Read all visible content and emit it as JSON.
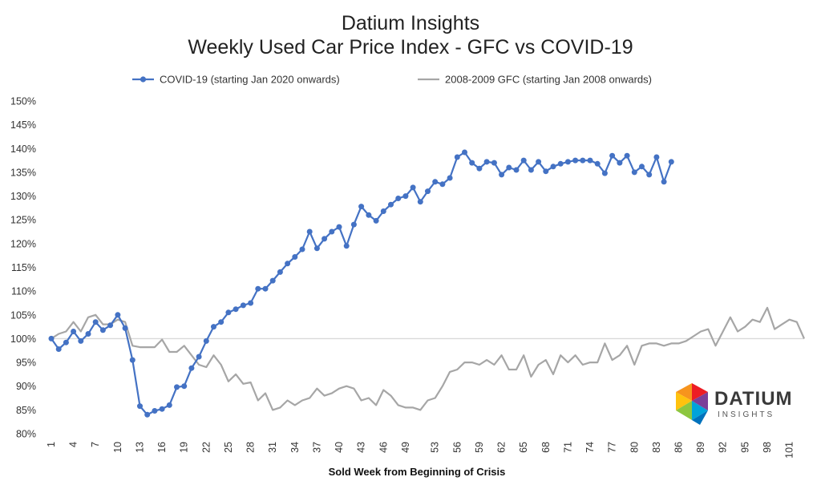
{
  "chart_data": {
    "type": "line",
    "title": "Datium Insights",
    "subtitle": "Weekly Used Car Price Index - GFC vs COVID-19",
    "xlabel": "Sold Week from Beginning of Crisis",
    "ylabel": "",
    "ylim": [
      80,
      150
    ],
    "xlim": [
      1,
      103
    ],
    "y_ticks": [
      "80%",
      "85%",
      "90%",
      "95%",
      "100%",
      "105%",
      "110%",
      "115%",
      "120%",
      "125%",
      "130%",
      "135%",
      "140%",
      "145%",
      "150%"
    ],
    "x_ticks": [
      "1",
      "4",
      "7",
      "10",
      "13",
      "16",
      "19",
      "22",
      "25",
      "28",
      "31",
      "34",
      "37",
      "40",
      "43",
      "46",
      "49",
      "53",
      "56",
      "59",
      "62",
      "65",
      "68",
      "71",
      "74",
      "77",
      "80",
      "83",
      "86",
      "89",
      "92",
      "95",
      "98",
      "101"
    ],
    "reference_line": 100,
    "legend_position": "top",
    "grid": false,
    "series": [
      {
        "name": "COVID-19 (starting Jan 2020 onwards)",
        "color": "#4472C4",
        "marker": "circle",
        "values": [
          100,
          97.8,
          99.2,
          101.5,
          99.5,
          101,
          103.5,
          101.8,
          102.8,
          105,
          102.2,
          95.5,
          85.8,
          84,
          84.8,
          85.2,
          86,
          89.8,
          90,
          93.8,
          96.2,
          99.5,
          102.5,
          103.5,
          105.5,
          106.2,
          107,
          107.5,
          110.5,
          110.5,
          112.2,
          114,
          115.8,
          117.2,
          118.8,
          122.5,
          119,
          121,
          122.5,
          123.5,
          119.5,
          124,
          127.8,
          126,
          124.8,
          126.8,
          128.2,
          129.5,
          130,
          131.8,
          128.8,
          131,
          133,
          132.5,
          133.8,
          138.2,
          139.2,
          137,
          135.8,
          137.2,
          137,
          134.5,
          136,
          135.5,
          137.5,
          135.5,
          137.2,
          135.2,
          136.2,
          136.8,
          137.2,
          137.5,
          137.5,
          137.5,
          136.8,
          134.8,
          138.5,
          137,
          138.5,
          135,
          136.2,
          134.5,
          138.2,
          133,
          137.2
        ]
      },
      {
        "name": "2008-2009 GFC (starting Jan 2008 onwards)",
        "color": "#A6A6A6",
        "marker": "none",
        "values": [
          100,
          101,
          101.5,
          103.5,
          101.5,
          104.5,
          105,
          103,
          103,
          104,
          103.5,
          98.5,
          98.2,
          98.2,
          98.2,
          99.8,
          97.2,
          97.2,
          98.5,
          96.5,
          94.5,
          94,
          96.5,
          94.5,
          91,
          92.5,
          90.5,
          90.8,
          87,
          88.5,
          85,
          85.5,
          87,
          86,
          87,
          87.5,
          89.5,
          88,
          88.5,
          89.5,
          90,
          89.5,
          87,
          87.5,
          86,
          89.2,
          88,
          86,
          85.5,
          85.5,
          85,
          87,
          87.5,
          90,
          93,
          93.5,
          95,
          95,
          94.5,
          95.5,
          94.5,
          96.5,
          93.5,
          93.5,
          96.5,
          92,
          94.5,
          95.5,
          92.5,
          96.5,
          95,
          96.5,
          94.5,
          95,
          95,
          99,
          95.5,
          96.5,
          98.5,
          94.5,
          98.5,
          99,
          99,
          98.5,
          99,
          99,
          99.5,
          100.5,
          101.5,
          102,
          98.5,
          101.5,
          104.5,
          101.5,
          102.5,
          104,
          103.5,
          106.5,
          102,
          103,
          104,
          103.5,
          100
        ]
      }
    ]
  },
  "logo": {
    "name": "DATIUM",
    "sub": "INSIGHTS",
    "colors": [
      "#F7941D",
      "#ED1C24",
      "#8DC63F",
      "#00A3DA",
      "#7B3F98",
      "#0072BC"
    ]
  }
}
